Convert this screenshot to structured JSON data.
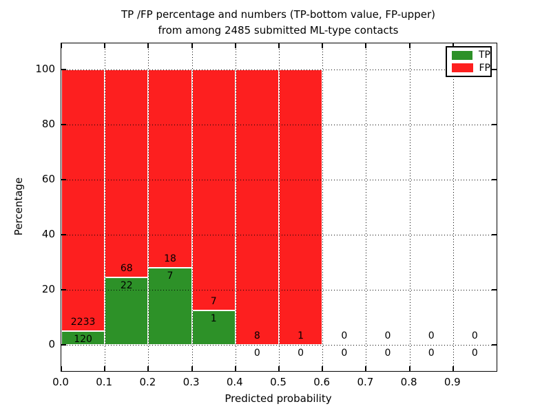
{
  "title": {
    "line1": "TP /FP percentage and numbers (TP-bottom value, FP-upper)",
    "line2": "from among 2485 submitted ML-type contacts"
  },
  "axes": {
    "xlabel": "Predicted probability",
    "ylabel": "Percentage",
    "ytick_labels": [
      "0",
      "20",
      "40",
      "60",
      "80",
      "100"
    ],
    "yticks": [
      0,
      20,
      40,
      60,
      80,
      100
    ],
    "xtick_labels": [
      "0.0",
      "0.1",
      "0.2",
      "0.3",
      "0.4",
      "0.5",
      "0.6",
      "0.7",
      "0.8",
      "0.9"
    ],
    "grid_style": "dotted"
  },
  "legend": {
    "position": "upper right",
    "items": [
      {
        "label": "TP",
        "color": "#2d9128"
      },
      {
        "label": "FP",
        "color": "#fd1f1f"
      }
    ]
  },
  "colors": {
    "tp_green": "#2d9128",
    "fp_red": "#fd1f1f",
    "bar_edge": "#ffffff",
    "text": "#000000"
  },
  "chart_data": {
    "type": "bar",
    "stacked": true,
    "normalized": "percent_of_bin_total",
    "title": "TP /FP percentage and numbers (TP-bottom value, FP-upper) from among 2485 submitted ML-type contacts",
    "xlabel": "Predicted probability",
    "ylabel": "Percentage",
    "total_contacts": 2485,
    "bin_width": 0.1,
    "categories": [
      "0.0-0.1",
      "0.1-0.2",
      "0.2-0.3",
      "0.3-0.4",
      "0.4-0.5",
      "0.5-0.6",
      "0.6-0.7",
      "0.7-0.8",
      "0.8-0.9",
      "0.9-1.0"
    ],
    "series": [
      {
        "name": "TP",
        "color": "#2d9128",
        "counts": [
          120,
          22,
          7,
          1,
          0,
          0,
          0,
          0,
          0,
          0
        ],
        "percent": [
          5.1,
          24.44,
          28.0,
          12.5,
          0.0,
          0.0,
          null,
          null,
          null,
          null
        ]
      },
      {
        "name": "FP",
        "color": "#fd1f1f",
        "counts": [
          2233,
          68,
          18,
          7,
          8,
          1,
          0,
          0,
          0,
          0
        ],
        "percent": [
          94.9,
          75.56,
          72.0,
          87.5,
          100.0,
          100.0,
          null,
          null,
          null,
          null
        ]
      }
    ],
    "ylim_ticks": [
      0,
      100
    ],
    "yticks": [
      0,
      20,
      40,
      60,
      80,
      100
    ],
    "grid": "dotted",
    "legend_position": "upper right",
    "label_note": "TP count printed below green top, FP count printed above green top"
  }
}
